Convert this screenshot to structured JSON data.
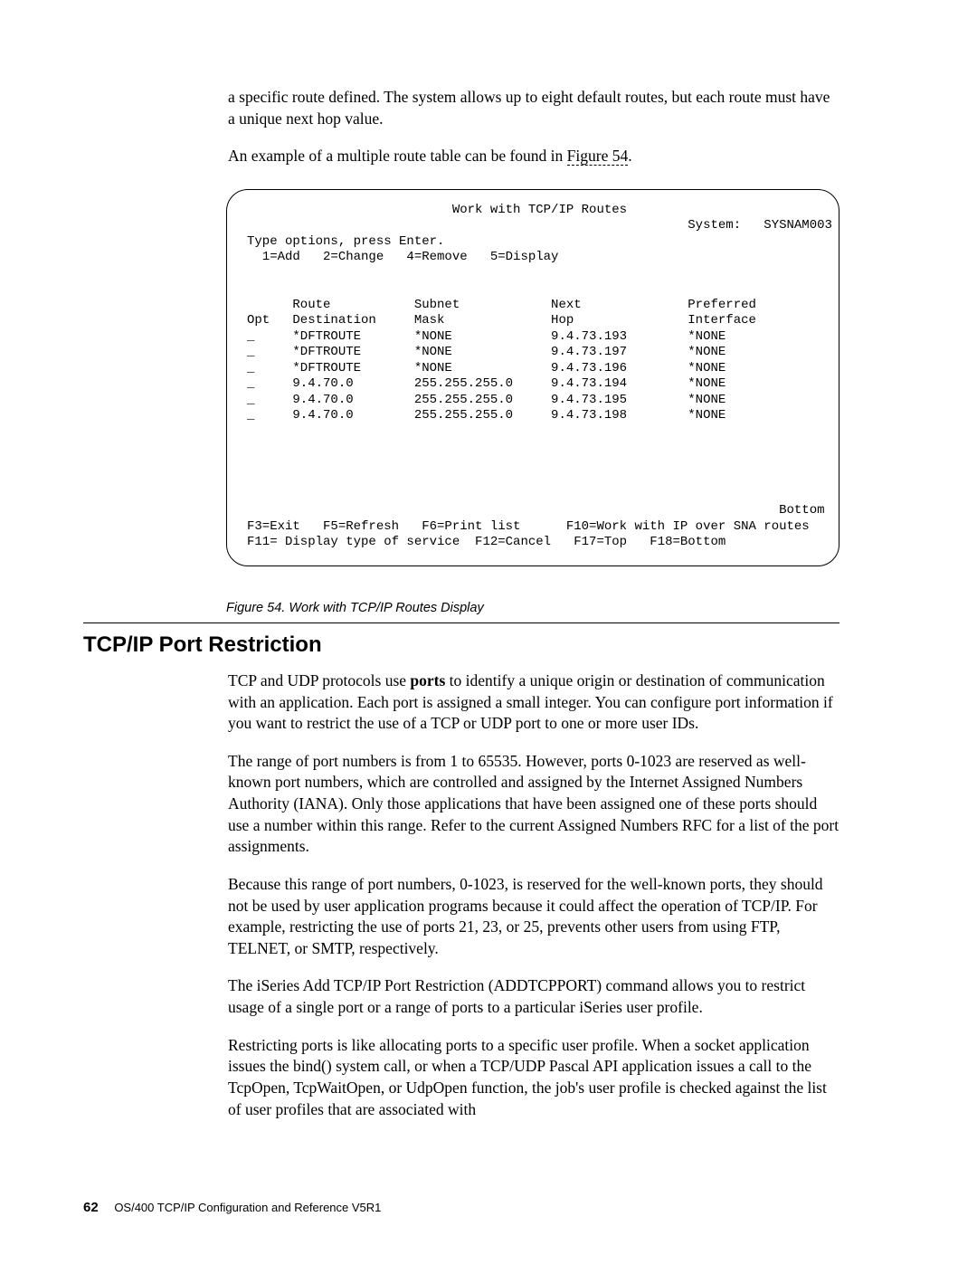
{
  "p1": "a specific route defined. The system allows up to eight default routes, but each route must have a unique next hop value.",
  "p2a": "An example of a multiple route table can be found in ",
  "p2link": "Figure 54",
  "p2b": ".",
  "terminal": {
    "title": "Work with TCP/IP Routes",
    "systemLabel": "System:",
    "systemVal": "SYSNAM003",
    "instr": "Type options, press Enter.",
    "opts": "  1=Add   2=Change   4=Remove   5=Display",
    "hdr": {
      "opt": "Opt",
      "dest": "Route\nDestination",
      "mask": "Subnet\nMask",
      "hop": "Next\nHop",
      "intf": "Preferred\nInterface"
    },
    "rows": [
      {
        "opt": "_",
        "dest": "*DFTROUTE",
        "mask": "*NONE",
        "hop": "9.4.73.193",
        "intf": "*NONE"
      },
      {
        "opt": "_",
        "dest": "*DFTROUTE",
        "mask": "*NONE",
        "hop": "9.4.73.197",
        "intf": "*NONE"
      },
      {
        "opt": "_",
        "dest": "*DFTROUTE",
        "mask": "*NONE",
        "hop": "9.4.73.196",
        "intf": "*NONE"
      },
      {
        "opt": "_",
        "dest": "9.4.70.0",
        "mask": "255.255.255.0",
        "hop": "9.4.73.194",
        "intf": "*NONE"
      },
      {
        "opt": "_",
        "dest": "9.4.70.0",
        "mask": "255.255.255.0",
        "hop": "9.4.73.195",
        "intf": "*NONE"
      },
      {
        "opt": "_",
        "dest": "9.4.70.0",
        "mask": "255.255.255.0",
        "hop": "9.4.73.198",
        "intf": "*NONE"
      }
    ],
    "bottom": "Bottom",
    "fkeys1": "F3=Exit   F5=Refresh   F6=Print list      F10=Work with IP over SNA routes",
    "fkeys2": "F11= Display type of service  F12=Cancel   F17=Top   F18=Bottom"
  },
  "figcap": "Figure 54. Work with TCP/IP Routes Display",
  "heading": "TCP/IP Port Restriction",
  "sp1a": "TCP and UDP protocols use ",
  "sp1bold": "ports",
  "sp1b": " to identify a unique origin or destination of communication with an application. Each port is assigned a small integer. You can configure port information if you want to restrict the use of a TCP or UDP port to one or more user IDs.",
  "sp2": "The range of port numbers is from 1 to 65535. However, ports 0-1023 are reserved as well-known port numbers, which are controlled and assigned by the Internet Assigned Numbers Authority (IANA). Only those applications that have been assigned one of these ports should use a number within this range. Refer to the current Assigned Numbers RFC for a list of the port assignments.",
  "sp3": "Because this range of port numbers, 0-1023, is reserved for the well-known ports, they should not be used by user application programs because it could affect the operation of TCP/IP. For example, restricting the use of ports 21, 23, or 25, prevents other users from using FTP, TELNET, or SMTP, respectively.",
  "sp4": "The iSeries Add TCP/IP Port Restriction (ADDTCPPORT) command allows you to restrict usage of a single port or a range of ports to a particular iSeries user profile.",
  "sp5": "Restricting ports is like allocating ports to a specific user profile. When a socket application issues the bind() system call, or when a TCP/UDP Pascal API application issues a call to the TcpOpen, TcpWaitOpen, or UdpOpen function, the job's user profile is checked against the list of user profiles that are associated with",
  "footer": {
    "page": "62",
    "title": "OS/400 TCP/IP Configuration and Reference V5R1"
  }
}
